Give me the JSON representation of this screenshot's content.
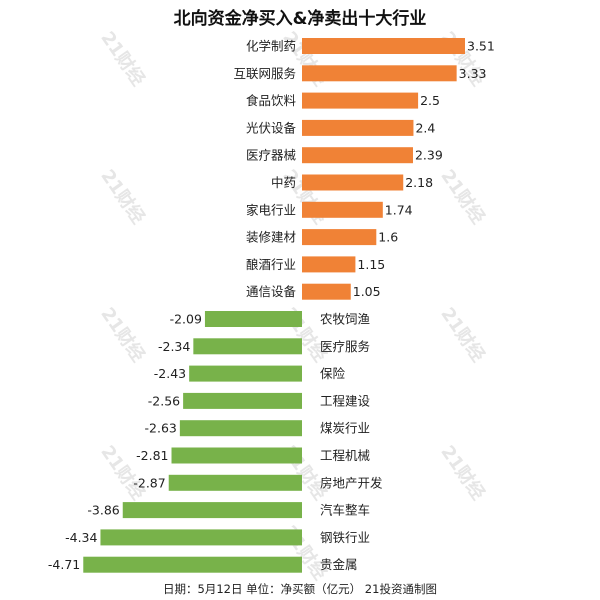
{
  "chart_data": {
    "type": "bar",
    "orientation": "horizontal",
    "title": "北向资金净买入&净卖出十大行业",
    "categories": [
      "化学制药",
      "互联网服务",
      "食品饮料",
      "光伏设备",
      "医疗器械",
      "中药",
      "家电行业",
      "装修建材",
      "酿酒行业",
      "通信设备",
      "农牧饲渔",
      "医疗服务",
      "保险",
      "工程建设",
      "煤炭行业",
      "工程机械",
      "房地产开发",
      "汽车整车",
      "钢铁行业",
      "贵金属"
    ],
    "values": [
      3.51,
      3.33,
      2.5,
      2.4,
      2.39,
      2.18,
      1.74,
      1.6,
      1.15,
      1.05,
      -2.09,
      -2.34,
      -2.43,
      -2.56,
      -2.63,
      -2.81,
      -2.87,
      -3.86,
      -4.34,
      -4.71
    ],
    "value_labels": [
      "3.51",
      "3.33",
      "2.5",
      "2.4",
      "2.39",
      "2.18",
      "1.74",
      "1.6",
      "1.15",
      "1.05",
      "-2.09",
      "-2.34",
      "-2.43",
      "-2.56",
      "-2.63",
      "-2.81",
      "-2.87",
      "-3.86",
      "-4.34",
      "-4.71"
    ],
    "colors": {
      "positive": "#f08236",
      "negative": "#78b24a"
    },
    "xlim": [
      -4.71,
      3.51
    ],
    "grid": false,
    "watermark": "21财经"
  },
  "footer": "日期：5月12日  单位：净买额（亿元） 21投资通制图"
}
